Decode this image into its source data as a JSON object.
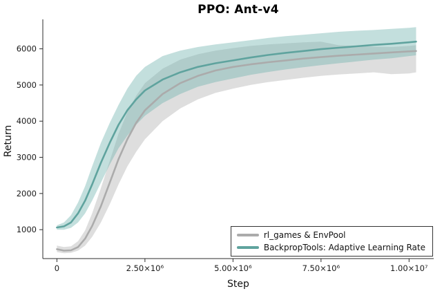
{
  "chart_data": {
    "type": "line",
    "title": "PPO: Ant-v4",
    "xlabel": "Step",
    "ylabel": "Return",
    "xlim": [
      -400000,
      10700000
    ],
    "ylim": [
      200,
      6700
    ],
    "grid": false,
    "legend_position": "bottom-right",
    "xticks": [
      {
        "v": 0,
        "label": "0"
      },
      {
        "v": 2500000,
        "label": "2.50×10⁶"
      },
      {
        "v": 5000000,
        "label": "5.00×10⁶"
      },
      {
        "v": 7500000,
        "label": "7.50×10⁶"
      },
      {
        "v": 10000000,
        "label": "1.00×10⁷"
      }
    ],
    "yticks": [
      {
        "v": 1000,
        "label": "1000"
      },
      {
        "v": 2000,
        "label": "2000"
      },
      {
        "v": 3000,
        "label": "3000"
      },
      {
        "v": 4000,
        "label": "4000"
      },
      {
        "v": 5000,
        "label": "5000"
      },
      {
        "v": 6000,
        "label": "6000"
      }
    ],
    "series": [
      {
        "name": "rl_games & EnvPool",
        "color": "#ababab",
        "band_color": "#a8a8a8",
        "band_opacity": 0.38,
        "x": [
          0,
          200000,
          400000,
          600000,
          800000,
          1000000,
          1250000,
          1500000,
          1750000,
          2000000,
          2250000,
          2500000,
          3000000,
          3500000,
          4000000,
          4500000,
          5000000,
          5500000,
          6000000,
          6500000,
          7000000,
          7500000,
          8000000,
          8500000,
          9000000,
          9500000,
          10000000,
          10200000
        ],
        "mean": [
          460,
          420,
          430,
          520,
          750,
          1100,
          1650,
          2300,
          2950,
          3500,
          3950,
          4300,
          4750,
          5050,
          5250,
          5400,
          5500,
          5570,
          5630,
          5680,
          5730,
          5770,
          5810,
          5840,
          5870,
          5900,
          5930,
          5940
        ],
        "low": [
          380,
          350,
          360,
          420,
          560,
          800,
          1200,
          1700,
          2250,
          2750,
          3150,
          3500,
          4000,
          4350,
          4600,
          4780,
          4900,
          5000,
          5080,
          5140,
          5200,
          5250,
          5290,
          5320,
          5350,
          5300,
          5320,
          5350
        ],
        "high": [
          560,
          520,
          540,
          680,
          980,
          1450,
          2150,
          2900,
          3650,
          4250,
          4700,
          5050,
          5450,
          5700,
          5850,
          5950,
          6020,
          6080,
          6120,
          6150,
          6180,
          6200,
          6100,
          6080,
          6060,
          6050,
          6080,
          6100
        ]
      },
      {
        "name": "BackpropTools: Adaptive Learning Rate",
        "color": "#5fa39e",
        "band_color": "#6fb3ad",
        "band_opacity": 0.42,
        "x": [
          0,
          200000,
          400000,
          600000,
          800000,
          1000000,
          1250000,
          1500000,
          1750000,
          2000000,
          2250000,
          2500000,
          3000000,
          3500000,
          4000000,
          4500000,
          5000000,
          5500000,
          6000000,
          6500000,
          7000000,
          7500000,
          8000000,
          8500000,
          9000000,
          9500000,
          10000000,
          10200000
        ],
        "mean": [
          1060,
          1090,
          1200,
          1450,
          1800,
          2250,
          2850,
          3400,
          3900,
          4300,
          4600,
          4850,
          5150,
          5350,
          5500,
          5600,
          5680,
          5760,
          5830,
          5890,
          5940,
          5990,
          6030,
          6070,
          6110,
          6140,
          6180,
          6200
        ],
        "low": [
          1000,
          1000,
          1050,
          1200,
          1450,
          1800,
          2300,
          2800,
          3250,
          3600,
          3900,
          4150,
          4500,
          4750,
          4950,
          5080,
          5180,
          5280,
          5360,
          5430,
          5490,
          5550,
          5600,
          5650,
          5700,
          5740,
          5800,
          5820
        ],
        "high": [
          1120,
          1200,
          1400,
          1750,
          2200,
          2750,
          3400,
          3950,
          4450,
          4900,
          5250,
          5500,
          5800,
          5950,
          6050,
          6120,
          6180,
          6240,
          6300,
          6350,
          6390,
          6430,
          6470,
          6500,
          6520,
          6550,
          6580,
          6600
        ]
      }
    ]
  }
}
